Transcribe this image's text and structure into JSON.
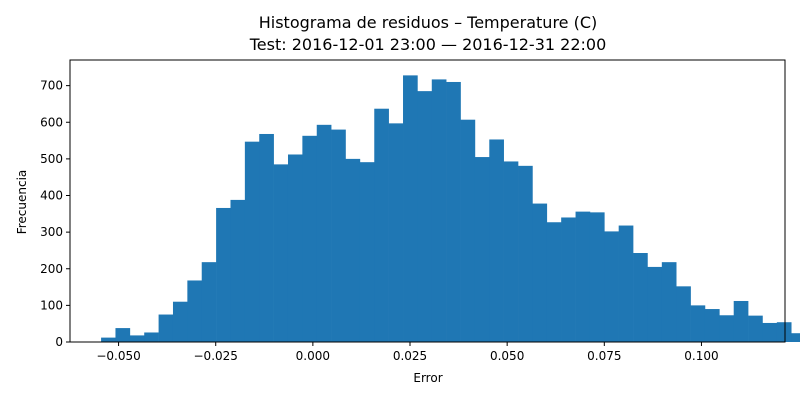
{
  "chart_data": {
    "type": "bar",
    "title": "Histograma de residuos – Temperature (C)",
    "subtitle": "Test: 2016-12-01 23:00 — 2016-12-31 22:00",
    "xlabel": "Error",
    "ylabel": "Frecuencia",
    "xlim": [
      -0.0625,
      0.1215
    ],
    "ylim": [
      0,
      770
    ],
    "bar_color": "#1f77b4",
    "grid": false,
    "legend": "none",
    "bin_start": -0.0545,
    "bin_width": 0.0037,
    "values": [
      12,
      38,
      18,
      26,
      75,
      110,
      168,
      218,
      366,
      388,
      547,
      568,
      485,
      512,
      563,
      593,
      580,
      500,
      491,
      637,
      597,
      728,
      685,
      717,
      710,
      607,
      505,
      553,
      493,
      481,
      378,
      327,
      340,
      356,
      354,
      302,
      318,
      243,
      205,
      218,
      152,
      100,
      90,
      73,
      112,
      72,
      52,
      54,
      24,
      10
    ],
    "x_ticks": [
      -0.05,
      -0.025,
      0.0,
      0.025,
      0.05,
      0.075,
      0.1
    ],
    "x_tick_labels": [
      "−0.050",
      "−0.025",
      "0.000",
      "0.025",
      "0.050",
      "0.075",
      "0.100"
    ],
    "y_ticks": [
      0,
      100,
      200,
      300,
      400,
      500,
      600,
      700
    ],
    "y_tick_labels": [
      "0",
      "100",
      "200",
      "300",
      "400",
      "500",
      "600",
      "700"
    ]
  }
}
